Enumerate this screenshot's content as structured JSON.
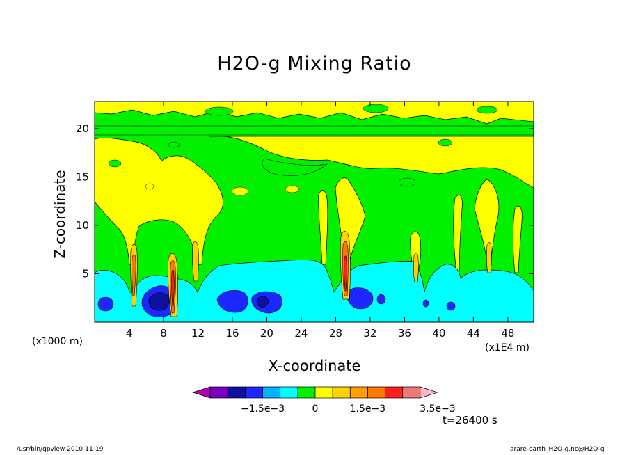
{
  "chart_data": {
    "type": "heatmap",
    "title": "H2O-g Mixing Ratio",
    "xlabel": "X-coordinate",
    "ylabel": "Z-coordinate",
    "x_unit_note": "(x1000 m)",
    "x_unit_note_right": "(x1E4 m)",
    "xlim": [
      0,
      51
    ],
    "ylim": [
      0,
      22.8
    ],
    "x_ticks": [
      4,
      8,
      12,
      16,
      20,
      24,
      28,
      32,
      36,
      40,
      44,
      48
    ],
    "y_ticks": [
      5,
      10,
      15,
      20
    ],
    "colorbar": {
      "levels": [
        -0.003,
        -0.0025,
        -0.002,
        -0.0015,
        -0.001,
        -0.0005,
        0,
        0.0005,
        0.001,
        0.0015,
        0.002,
        0.0025,
        0.003,
        0.0035
      ],
      "colors": [
        "#b000b0",
        "#7a00c0",
        "#1010a0",
        "#1c28ff",
        "#00b4ff",
        "#00ffff",
        "#00f000",
        "#ffff00",
        "#ffd200",
        "#ffa000",
        "#ff7800",
        "#ff1e1e",
        "#f07878",
        "#ffb4c8"
      ],
      "tick_labels": [
        {
          "value": -0.0015,
          "label": "−1.5e−3"
        },
        {
          "value": 0,
          "label": "0"
        },
        {
          "value": 0.0015,
          "label": "1.5e−3"
        },
        {
          "value": 0.0035,
          "label": "3.5e−3"
        }
      ]
    }
  },
  "annotations": {
    "time": "t=26400 s",
    "footer_left": "/usr/bin/gpview   2010-11-19",
    "footer_right": "arare-earth_H2O-g.nc@H2O-g"
  }
}
